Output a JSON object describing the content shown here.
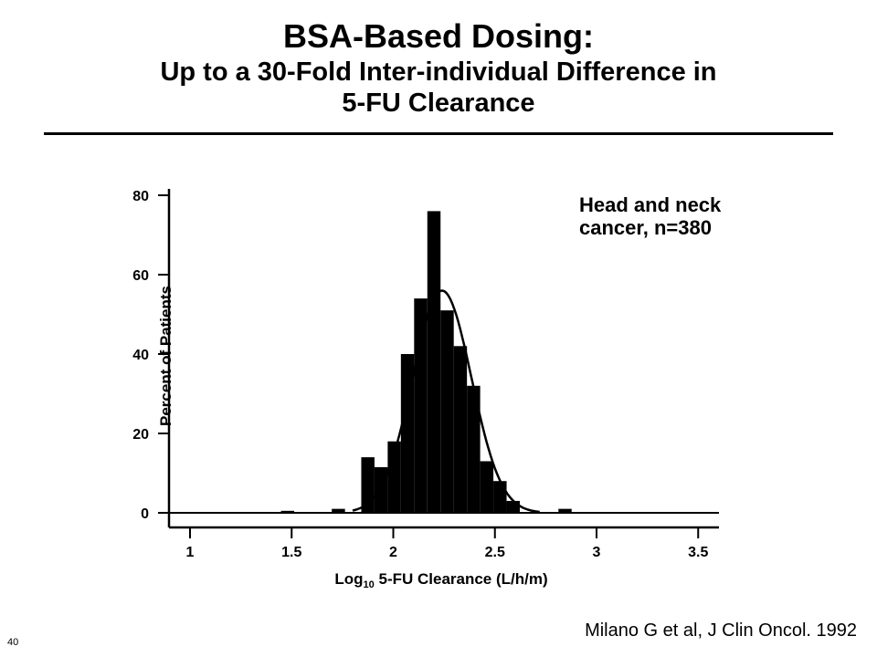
{
  "slide": {
    "title": "BSA-Based Dosing:",
    "subtitle_line1": "Up to a 30-Fold Inter-individual Difference in",
    "subtitle_line2": "5-FU Clearance",
    "source": "Milano G et al, J Clin Oncol. 1992",
    "slide_number": "40"
  },
  "chart_data": {
    "type": "bar",
    "annotation_line1": "Head and neck",
    "annotation_line2": "cancer, n=380",
    "ylabel": "Percent of Patients",
    "xlabel_prefix": "Log",
    "xlabel_sub": "10",
    "xlabel_suffix": " 5-FU Clearance (L/h/m)",
    "xlim": [
      0.9,
      3.6
    ],
    "ylim": [
      0,
      80
    ],
    "x_ticks": [
      {
        "value": 1,
        "label": "1"
      },
      {
        "value": 1.5,
        "label": "1.5"
      },
      {
        "value": 2,
        "label": "2"
      },
      {
        "value": 2.5,
        "label": "2.5"
      },
      {
        "value": 3,
        "label": "3"
      },
      {
        "value": 3.5,
        "label": "3.5"
      }
    ],
    "y_ticks": [
      {
        "value": 0,
        "label": "0"
      },
      {
        "value": 20,
        "label": "20"
      },
      {
        "value": 40,
        "label": "40"
      },
      {
        "value": 60,
        "label": "60"
      },
      {
        "value": 80,
        "label": "80"
      }
    ],
    "bin_width": 0.065,
    "bars": [
      {
        "x": 1.48,
        "value": 0.5
      },
      {
        "x": 1.73,
        "value": 1
      },
      {
        "x": 1.875,
        "value": 14
      },
      {
        "x": 1.94,
        "value": 11.5
      },
      {
        "x": 2.005,
        "value": 18
      },
      {
        "x": 2.07,
        "value": 40
      },
      {
        "x": 2.135,
        "value": 54
      },
      {
        "x": 2.2,
        "value": 76
      },
      {
        "x": 2.265,
        "value": 51
      },
      {
        "x": 2.33,
        "value": 42
      },
      {
        "x": 2.395,
        "value": 32
      },
      {
        "x": 2.46,
        "value": 13
      },
      {
        "x": 2.525,
        "value": 8
      },
      {
        "x": 2.59,
        "value": 3
      },
      {
        "x": 2.845,
        "value": 1
      }
    ],
    "fit_curve": {
      "type": "normal",
      "mean": 2.24,
      "sd": 0.145,
      "peak": 56
    }
  }
}
